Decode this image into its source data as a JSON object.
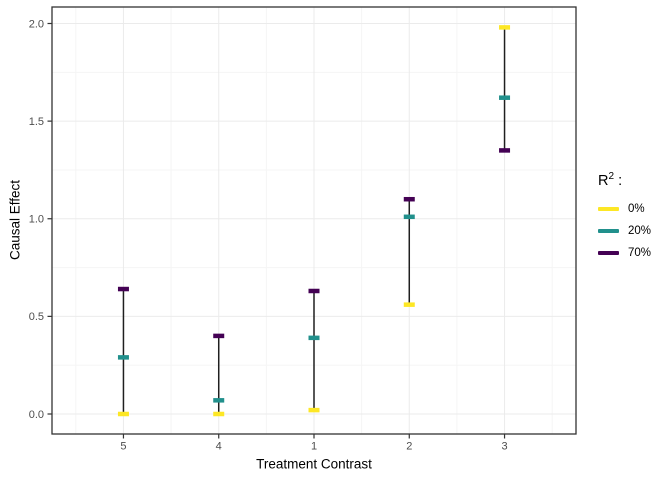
{
  "figure": {
    "xlabel": "Treatment Contrast",
    "ylabel": "Causal Effect"
  },
  "legend": {
    "title_base": "R",
    "title_sup": "2",
    "title_colon": " :",
    "entries": [
      {
        "label": "0%",
        "color": "#FDE725"
      },
      {
        "label": "20%",
        "color": "#21908C"
      },
      {
        "label": "70%",
        "color": "#440154"
      }
    ]
  },
  "chart_data": {
    "type": "pointrange",
    "title": "",
    "xlabel": "Treatment Contrast",
    "ylabel": "Causal Effect",
    "categories": [
      "5",
      "4",
      "1",
      "2",
      "3"
    ],
    "series": [
      {
        "name": "0%",
        "color": "#FDE725",
        "values": [
          0.0,
          0.0,
          0.02,
          0.56,
          1.98
        ]
      },
      {
        "name": "20%",
        "color": "#21908C",
        "values": [
          0.29,
          0.07,
          0.39,
          1.01,
          1.62
        ]
      },
      {
        "name": "70%",
        "color": "#440154",
        "values": [
          0.64,
          0.4,
          0.63,
          1.1,
          1.35
        ]
      }
    ],
    "y_ticks": [
      0,
      0.5,
      1,
      1.5,
      2
    ],
    "y_tick_labels": [
      "0.0",
      "0.5",
      "1.0",
      "1.5",
      "2.0"
    ],
    "y_minor_ticks": [
      0.25,
      0.75,
      1.25,
      1.75
    ],
    "ylim": [
      -0.1,
      2.08
    ],
    "grid": true,
    "legend_position": "right",
    "legend_title": "R² :"
  },
  "colors": {
    "background": "#FFFFFF",
    "panel_border": "#333333",
    "grid_major": "#EBEBEB",
    "grid_minor": "#F5F5F5",
    "range_line": "#1F1F1F",
    "tick_mark": "#333333",
    "axis_text": "#4D4D4D",
    "title_text": "#000000"
  }
}
